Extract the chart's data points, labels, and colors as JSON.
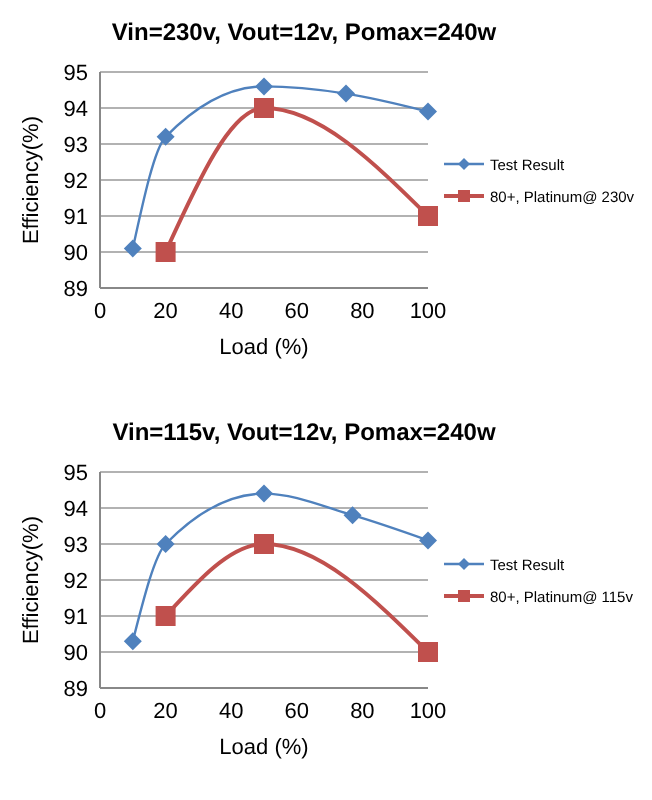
{
  "chart_data": [
    {
      "type": "line",
      "title": "Vin=230v, Vout=12v, Pomax=240w",
      "xlabel": "Load (%)",
      "ylabel": "Efficiency(%)",
      "xlim": [
        0,
        100
      ],
      "xticks": [
        0,
        20,
        40,
        60,
        80,
        100
      ],
      "ylim": [
        89,
        95
      ],
      "yticks": [
        89,
        90,
        91,
        92,
        93,
        94,
        95
      ],
      "grid": "y",
      "legend": "right",
      "series": [
        {
          "name": "Test Result",
          "color": "#4f81bd",
          "marker": "diamond",
          "x": [
            10,
            20,
            50,
            75,
            100
          ],
          "values": [
            90.1,
            93.2,
            94.6,
            94.4,
            93.9
          ]
        },
        {
          "name": "80+, Platinum@ 230v",
          "color": "#c0504d",
          "marker": "square",
          "x": [
            20,
            50,
            100
          ],
          "values": [
            90,
            94,
            91
          ]
        }
      ]
    },
    {
      "type": "line",
      "title": "Vin=115v, Vout=12v, Pomax=240w",
      "xlabel": "Load (%)",
      "ylabel": "Efficiency(%)",
      "xlim": [
        0,
        100
      ],
      "xticks": [
        0,
        20,
        40,
        60,
        80,
        100
      ],
      "ylim": [
        89,
        95
      ],
      "yticks": [
        89,
        90,
        91,
        92,
        93,
        94,
        95
      ],
      "grid": "y",
      "legend": "right",
      "series": [
        {
          "name": "Test Result",
          "color": "#4f81bd",
          "marker": "diamond",
          "x": [
            10,
            20,
            50,
            77,
            100
          ],
          "values": [
            90.3,
            93.0,
            94.4,
            93.8,
            93.1
          ]
        },
        {
          "name": "80+, Platinum@ 115v",
          "color": "#c0504d",
          "marker": "square",
          "x": [
            20,
            50,
            100
          ],
          "values": [
            91,
            93,
            90
          ]
        }
      ]
    }
  ]
}
